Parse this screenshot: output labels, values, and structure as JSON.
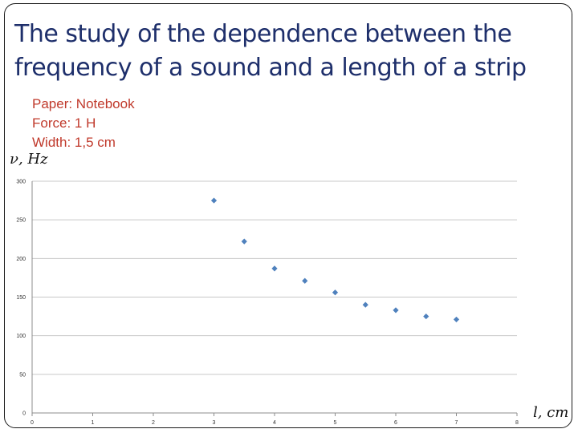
{
  "title": "The study of the dependence between the frequency of a sound and a length of a strip",
  "params": [
    "Paper: Notebook",
    "Force: 1 H",
    "Width: 1,5 cm"
  ],
  "chart_data": {
    "type": "scatter",
    "title": "",
    "xlabel": "l, cm",
    "ylabel": "ν, Hz",
    "xlim": [
      0,
      8
    ],
    "ylim": [
      0,
      300
    ],
    "xticks": [
      0,
      1,
      2,
      3,
      4,
      5,
      6,
      7,
      8
    ],
    "yticks": [
      0,
      50,
      100,
      150,
      200,
      250,
      300
    ],
    "grid": "horizontal",
    "legend": "none",
    "series": [
      {
        "color": "#4f81bd",
        "marker": "diamond",
        "x": [
          3,
          3.5,
          4,
          4.5,
          5,
          5.5,
          6,
          6.5,
          7
        ],
        "y": [
          275,
          222,
          187,
          171,
          156,
          140,
          133,
          125,
          121
        ]
      }
    ]
  }
}
